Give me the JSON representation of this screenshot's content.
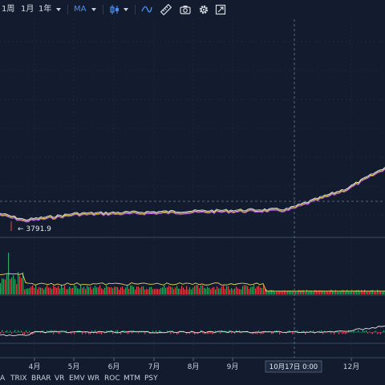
{
  "toolbar": {
    "period_week": "1周",
    "period_month": "1月",
    "period_year": "1年",
    "indicator": "MA",
    "icons": [
      "candlestick-icon",
      "line-style-icon",
      "ruler-icon",
      "camera-icon",
      "gear-icon",
      "fullscreen-icon"
    ]
  },
  "main_chart": {
    "low_marker": "← 3791.9"
  },
  "x_axis": {
    "months": [
      "4月",
      "5月",
      "6月",
      "7月",
      "8月",
      "9月",
      "12月"
    ],
    "crosshair_label": "10月17日 0:00"
  },
  "indicator_tabs": [
    "A",
    "TRIX",
    "BRAR",
    "VR",
    "EMV",
    "WR",
    "ROC",
    "MTM",
    "PSY"
  ],
  "colors": {
    "background": "#131c2e",
    "grid": "#223048",
    "accent": "#4a8ef0",
    "ma_purple": "#b04fd6",
    "ma_yellow": "#e8d24a",
    "ma_white": "#e6e6e6",
    "up": "#2ca56a",
    "down": "#e0474c"
  }
}
